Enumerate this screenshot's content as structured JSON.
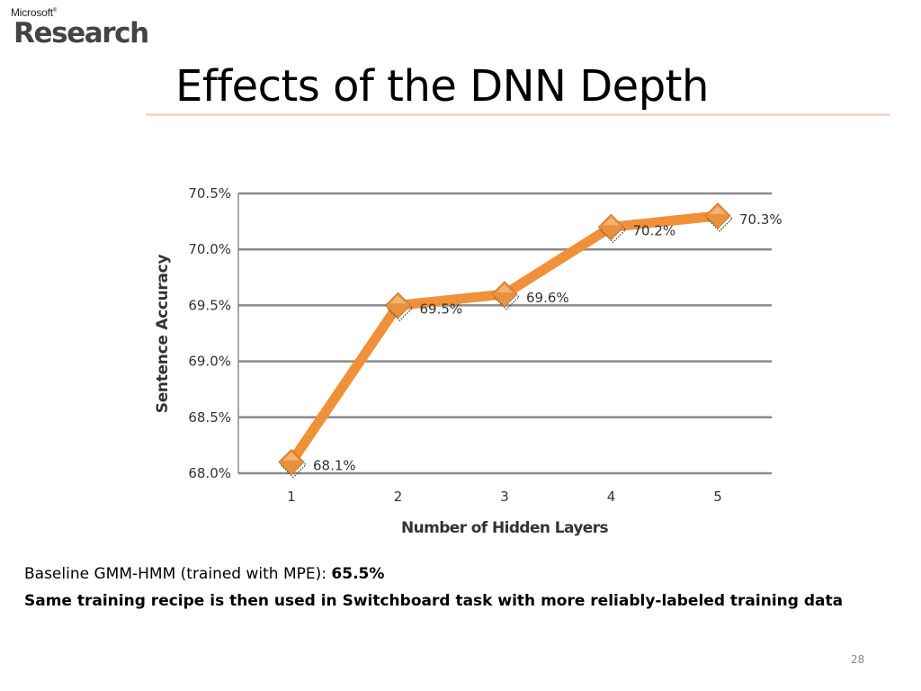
{
  "logo": {
    "top": "Microsoft",
    "trademark": "®",
    "main": "Research"
  },
  "slide": {
    "title": "Effects of the DNN Depth",
    "baseline_prefix": "Baseline GMM-HMM (trained with MPE): ",
    "baseline_value": "65.5%",
    "recipe_note": "Same training recipe is then used in Switchboard task with more reliably-labeled training data",
    "page_number": "28"
  },
  "chart_data": {
    "type": "line",
    "title": "",
    "xlabel": "Number of Hidden Layers",
    "ylabel": "Sentence Accuracy",
    "x": [
      1,
      2,
      3,
      4,
      5
    ],
    "y_tick_labels": [
      "68.0%",
      "68.5%",
      "69.0%",
      "69.5%",
      "70.0%",
      "70.5%"
    ],
    "y_ticks": [
      68.0,
      68.5,
      69.0,
      69.5,
      70.0,
      70.5
    ],
    "ylim": [
      68.0,
      70.5
    ],
    "grid": true,
    "series": [
      {
        "values": [
          68.1,
          69.5,
          69.6,
          70.2,
          70.3
        ],
        "data_labels": [
          "68.1%",
          "69.5%",
          "69.6%",
          "70.2%",
          "70.3%"
        ],
        "color": "#f0913a",
        "marker_color": "#e8913e",
        "marker": "diamond"
      }
    ]
  }
}
